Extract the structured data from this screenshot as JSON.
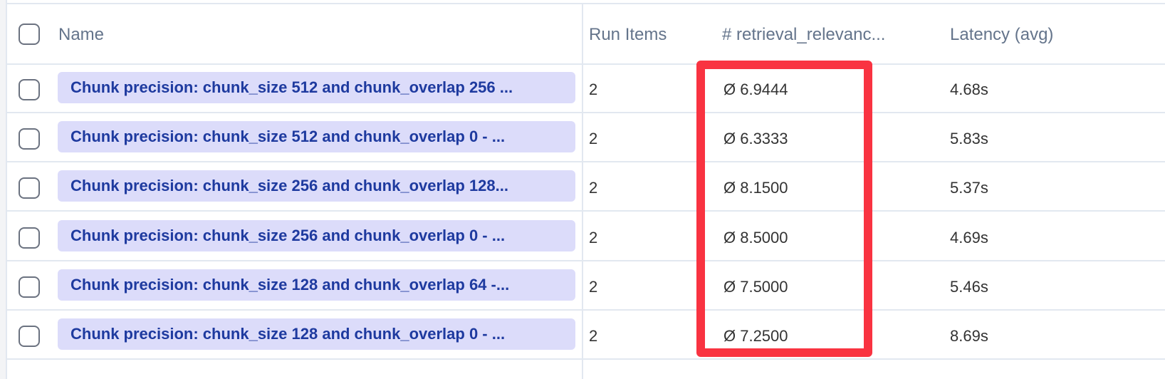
{
  "table": {
    "columns": [
      "Name",
      "Run Items",
      "# retrieval_relevanc...",
      "Latency (avg)"
    ],
    "rows": [
      {
        "name": "Chunk precision: chunk_size 512 and chunk_overlap 256 ...",
        "run_items": "2",
        "score": "Ø 6.9444",
        "latency": "4.68s"
      },
      {
        "name": "Chunk precision: chunk_size 512 and chunk_overlap 0 - ...",
        "run_items": "2",
        "score": "Ø 6.3333",
        "latency": "5.83s"
      },
      {
        "name": "Chunk precision: chunk_size 256 and chunk_overlap 128...",
        "run_items": "2",
        "score": "Ø 8.1500",
        "latency": "5.37s"
      },
      {
        "name": "Chunk precision: chunk_size 256 and chunk_overlap 0 - ...",
        "run_items": "2",
        "score": "Ø 8.5000",
        "latency": "4.69s"
      },
      {
        "name": "Chunk precision: chunk_size 128 and chunk_overlap 64 -...",
        "run_items": "2",
        "score": "Ø 7.5000",
        "latency": "5.46s"
      },
      {
        "name": "Chunk precision: chunk_size 128 and chunk_overlap 0 - ...",
        "run_items": "2",
        "score": "Ø 7.2500",
        "latency": "8.69s"
      }
    ]
  },
  "highlight_color": "#f93341",
  "pill_color": "#dcdcfa",
  "link_color": "#1e3a9f"
}
